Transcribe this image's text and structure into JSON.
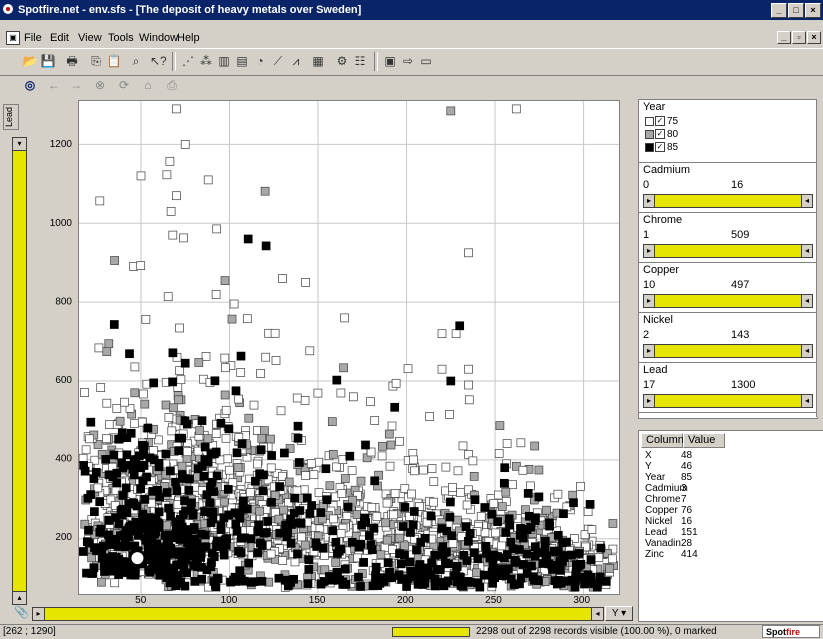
{
  "window": {
    "title": "Spotfire.net - env.sfs - [The deposit of heavy metals over Sweden]"
  },
  "menu": {
    "items": [
      "File",
      "Edit",
      "View",
      "Tools",
      "Window",
      "Help"
    ]
  },
  "plot": {
    "y_axis_column": "Lead",
    "y_selector": "Y ▾",
    "y_ticks": [
      "1200",
      "1000",
      "800",
      "600",
      "400",
      "200"
    ],
    "x_ticks": [
      "50",
      "100",
      "150",
      "200",
      "250",
      "300"
    ]
  },
  "chart_data": {
    "type": "scatter",
    "xlabel": "",
    "ylabel": "Lead",
    "xlim": [
      15,
      320
    ],
    "ylim": [
      60,
      1310
    ],
    "series": [
      {
        "name": "75",
        "color": "#ffffff"
      },
      {
        "name": "80",
        "color": "#a8a8a8"
      },
      {
        "name": "85",
        "color": "#000000"
      }
    ],
    "grid": true
  },
  "filters": {
    "year": {
      "label": "Year",
      "options": [
        "75",
        "80",
        "85"
      ]
    },
    "cadmium": {
      "label": "Cadmium",
      "min": "0",
      "max": "16"
    },
    "chrome": {
      "label": "Chrome",
      "min": "1",
      "max": "509"
    },
    "copper": {
      "label": "Copper",
      "min": "10",
      "max": "497"
    },
    "nickel": {
      "label": "Nickel",
      "min": "2",
      "max": "143"
    },
    "lead": {
      "label": "Lead",
      "min": "17",
      "max": "1300"
    }
  },
  "details": {
    "col_header": "Column",
    "val_header": "Value",
    "rows": [
      {
        "col": "X",
        "val": "48"
      },
      {
        "col": "Y",
        "val": "46"
      },
      {
        "col": "Year",
        "val": "85"
      },
      {
        "col": "Cadmium",
        "val": "3"
      },
      {
        "col": "Chrome",
        "val": "7"
      },
      {
        "col": "Copper",
        "val": "76"
      },
      {
        "col": "Nickel",
        "val": "16"
      },
      {
        "col": "Lead",
        "val": "151"
      },
      {
        "col": "Vanadin",
        "val": "28"
      },
      {
        "col": "Zinc",
        "val": "414"
      }
    ]
  },
  "status": {
    "coords": "[262 ; 1290]",
    "records": "2298 out of 2298 records visible (100.00 %), 0 marked",
    "brand_a": "Spot",
    "brand_b": "fire"
  }
}
